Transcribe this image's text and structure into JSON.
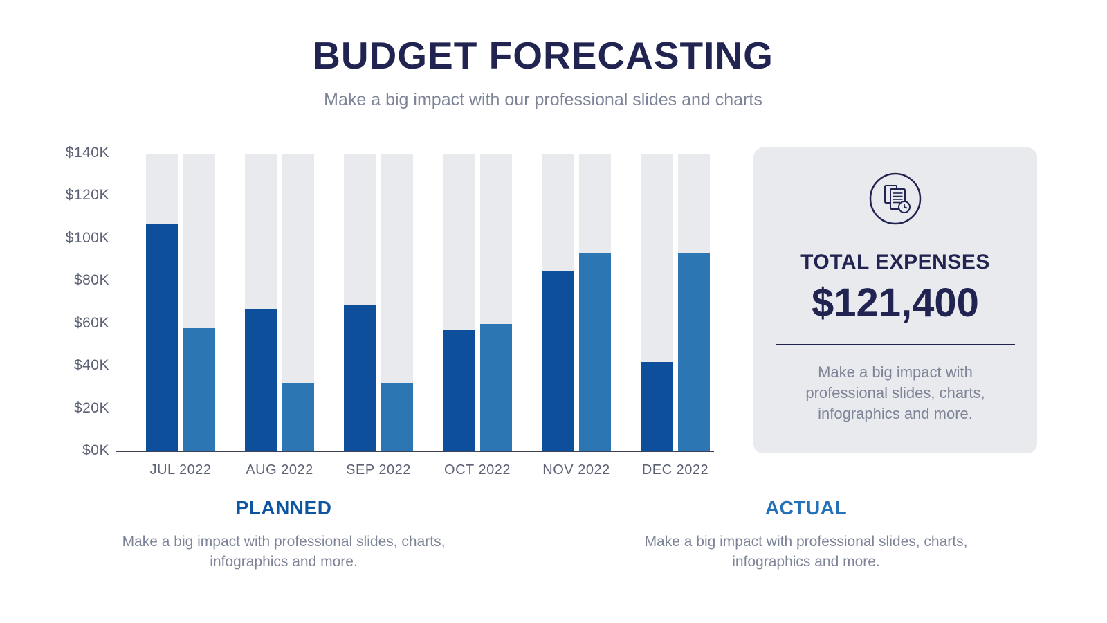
{
  "header": {
    "title": "BUDGET FORECASTING",
    "subtitle": "Make a big impact with our professional slides and charts"
  },
  "chart_data": {
    "type": "bar",
    "categories": [
      "JUL 2022",
      "AUG 2022",
      "SEP 2022",
      "OCT 2022",
      "NOV 2022",
      "DEC 2022"
    ],
    "series": [
      {
        "name": "PLANNED",
        "values": [
          107,
          67,
          69,
          57,
          85,
          42
        ],
        "color": "#0d4f9b"
      },
      {
        "name": "ACTUAL",
        "values": [
          58,
          32,
          32,
          60,
          93,
          93
        ],
        "color": "#2d76b4"
      }
    ],
    "value_unit": "$K",
    "title": "",
    "xlabel": "",
    "ylabel": "",
    "ylim": [
      0,
      140
    ],
    "y_ticks": [
      "$140K",
      "$120K",
      "$100K",
      "$80K",
      "$60K",
      "$40K",
      "$20K",
      "$0K"
    ],
    "grid": false,
    "track_color": "#e9eaed",
    "legend_position": "bottom"
  },
  "summary_card": {
    "icon": "documents-clock-icon",
    "label": "TOTAL EXPENSES",
    "value": "$121,400",
    "description": "Make a big impact with professional slides, charts, infographics and more."
  },
  "legend": {
    "planned": {
      "name": "PLANNED",
      "color": "#0e55a0",
      "description": "Make a big impact with professional slides, charts, infographics and more."
    },
    "actual": {
      "name": "ACTUAL",
      "color": "#2471b8",
      "description": "Make a big impact with professional slides, charts, infographics and more."
    }
  },
  "colors": {
    "title_navy": "#212451",
    "muted_text": "#7d8497",
    "axis_text": "#5c6274",
    "axis_line": "#3f4257",
    "planned_bar": "#0d4f9b",
    "actual_bar": "#2d76b4",
    "track_gray": "#e9eaed",
    "card_bg": "#e9eaed"
  }
}
